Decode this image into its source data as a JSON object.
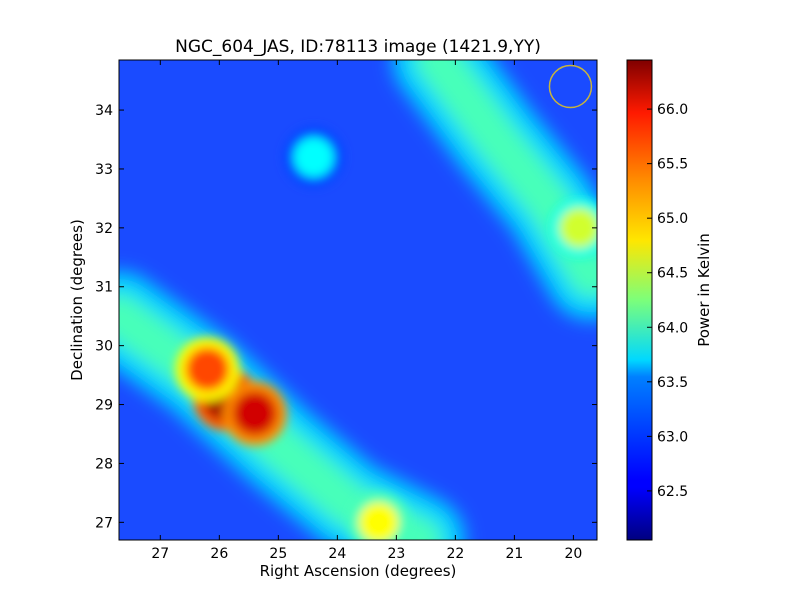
{
  "chart_data": {
    "type": "heatmap",
    "title": "NGC_604_JAS, ID:78113 image (1421.9,YY)",
    "xlabel": "Right Ascension (degrees)",
    "ylabel": "Declination (degrees)",
    "xlim": [
      27.7,
      19.6
    ],
    "ylim": [
      26.7,
      34.85
    ],
    "xticks": [
      27,
      26,
      25,
      24,
      23,
      22,
      21,
      20
    ],
    "yticks": [
      27,
      28,
      29,
      30,
      31,
      32,
      33,
      34
    ],
    "colorbar": {
      "label": "Power in Kelvin",
      "range": [
        62.05,
        66.45
      ],
      "ticks": [
        62.5,
        63.0,
        63.5,
        64.0,
        64.5,
        65.0,
        65.5,
        66.0
      ],
      "tick_labels": [
        "62.5",
        "63.0",
        "63.5",
        "64.0",
        "64.5",
        "65.0",
        "65.5",
        "66.0"
      ],
      "colormap": "jet"
    },
    "background_level": 62.75,
    "features": [
      {
        "kind": "ridge",
        "ra": [
          27.7,
          26.3,
          25.0,
          23.8,
          22.6
        ],
        "dec": [
          30.5,
          29.5,
          28.3,
          27.3,
          26.7
        ],
        "level": 64.0
      },
      {
        "kind": "peak",
        "ra": 25.9,
        "dec": 29.1,
        "level": 66.3
      },
      {
        "kind": "peak",
        "ra": 25.4,
        "dec": 28.85,
        "level": 66.1
      },
      {
        "kind": "peak",
        "ra": 26.2,
        "dec": 29.6,
        "level": 65.6
      },
      {
        "kind": "peak",
        "ra": 23.3,
        "dec": 27.0,
        "level": 64.8
      },
      {
        "kind": "ridge",
        "ra": [
          22.3,
          21.3,
          20.4,
          19.7
        ],
        "dec": [
          34.85,
          33.5,
          32.4,
          31.2
        ],
        "level": 64.0
      },
      {
        "kind": "peak",
        "ra": 19.9,
        "dec": 32.0,
        "level": 64.6
      },
      {
        "kind": "peak",
        "ra": 24.4,
        "dec": 33.2,
        "level": 63.7
      }
    ],
    "beam_marker": {
      "ra": 20.05,
      "dec": 34.4,
      "color": "#c8b43c"
    }
  }
}
